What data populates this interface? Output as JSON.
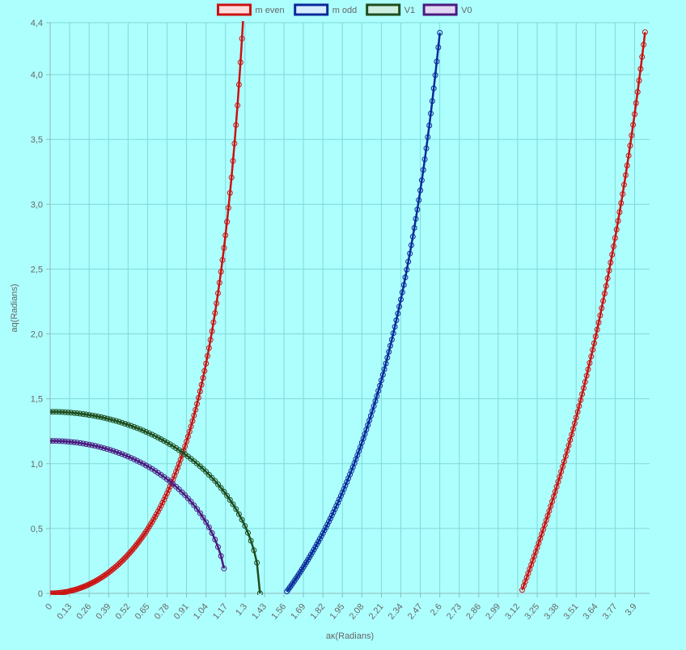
{
  "chart_data": {
    "type": "line",
    "xlabel": "aκ(Radians)",
    "ylabel": "aq(Radians)",
    "xlim": [
      0,
      4.0
    ],
    "ylim": [
      0,
      4.4
    ],
    "grid": true,
    "legend_position": "top",
    "x_tick_labels": [
      "0",
      "0.13",
      "0.26",
      "0.39",
      "0.52",
      "0.65",
      "0.78",
      "0.91",
      "1.04",
      "1.17",
      "1.3",
      "1.43",
      "1.56",
      "1.69",
      "1.82",
      "1.95",
      "2.08",
      "2.21",
      "2.34",
      "2.47",
      "2.6",
      "2.73",
      "2.86",
      "2.99",
      "3.12",
      "3.25",
      "3.38",
      "3.51",
      "3.64",
      "3.77",
      "3.9"
    ],
    "y_tick_labels": [
      "0",
      "0,5",
      "1,0",
      "1,5",
      "2,0",
      "2,5",
      "3,0",
      "3,5",
      "4,0",
      "4,4"
    ],
    "y_tick_values": [
      0,
      0.5,
      1.0,
      1.5,
      2.0,
      2.5,
      3.0,
      3.5,
      4.0,
      4.4
    ],
    "series": [
      {
        "name": "m even",
        "color": "#cc1111",
        "fill": "#ffdddd",
        "segments": [
          {
            "x_start": 0.0,
            "x_end": 1.3,
            "step": 0.01,
            "curve": "x*tan(x)"
          },
          {
            "x_start": 3.15,
            "x_end": 3.97,
            "step": 0.01,
            "curve": "x*tan(x)"
          }
        ]
      },
      {
        "name": "m odd",
        "color": "#0a2a9a",
        "fill": "#d6ecff",
        "segments": [
          {
            "x_start": 1.58,
            "x_end": 2.6,
            "step": 0.01,
            "curve": "-x/tan(x)"
          }
        ]
      },
      {
        "name": "V1",
        "color": "#1e4d1e",
        "fill": "#cdeee0",
        "segments": [
          {
            "x_start": 0.0,
            "x_end": 1.4,
            "step": 0.02,
            "curve": "sqrt(1.96 - x^2)"
          }
        ]
      },
      {
        "name": "V0",
        "color": "#4b1a80",
        "fill": "#e3d6f5",
        "segments": [
          {
            "x_start": 0.0,
            "x_end": 1.17,
            "step": 0.02,
            "curve": "sqrt(1.3824 - x^2)"
          }
        ]
      }
    ]
  }
}
